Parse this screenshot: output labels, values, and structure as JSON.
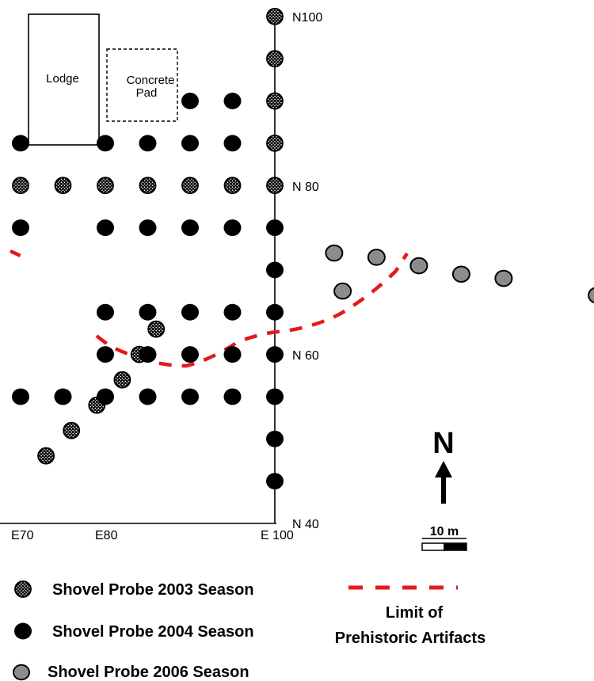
{
  "map": {
    "lodge_label": "Lodge",
    "pad_label_line1": "Concrete",
    "pad_label_line2": "Pad",
    "northing_labels": {
      "n100": "N100",
      "n80": "N 80",
      "n60": "N 60",
      "n40": "N 40"
    },
    "easting_labels": {
      "e70": "E70",
      "e80": "E80",
      "e100": "E 100"
    },
    "north_arrow_label": "N",
    "scale_label": "10 m"
  },
  "legend": {
    "probe_2003": "Shovel Probe 2003 Season",
    "probe_2004": "Shovel Probe 2004 Season",
    "probe_2006": "Shovel Probe 2006 Season",
    "limit_line1": "Limit of",
    "limit_line2": "Prehistoric Artifacts"
  },
  "colors": {
    "probe_2004": "#000000",
    "probe_2006": "#8c8c8c",
    "limit_line": "#e11a1a"
  },
  "probes": {
    "season_2003": [
      [
        100,
        100
      ],
      [
        100,
        95
      ],
      [
        100,
        90
      ],
      [
        100,
        85
      ],
      [
        100,
        80
      ],
      [
        70,
        80
      ],
      [
        75,
        80
      ],
      [
        80,
        80
      ],
      [
        85,
        80
      ],
      [
        90,
        80
      ],
      [
        95,
        80
      ],
      [
        86,
        63
      ],
      [
        84,
        60
      ],
      [
        82,
        57
      ],
      [
        79,
        54
      ],
      [
        76,
        51
      ],
      [
        73,
        48
      ]
    ],
    "season_2004": [
      [
        90,
        90
      ],
      [
        95,
        90
      ],
      [
        70,
        85
      ],
      [
        80,
        85
      ],
      [
        85,
        85
      ],
      [
        90,
        85
      ],
      [
        95,
        85
      ],
      [
        70,
        75
      ],
      [
        80,
        75
      ],
      [
        85,
        75
      ],
      [
        90,
        75
      ],
      [
        95,
        75
      ],
      [
        100,
        75
      ],
      [
        100,
        70
      ],
      [
        80,
        65
      ],
      [
        85,
        65
      ],
      [
        90,
        65
      ],
      [
        95,
        65
      ],
      [
        100,
        65
      ],
      [
        80,
        60
      ],
      [
        85,
        60
      ],
      [
        90,
        60
      ],
      [
        95,
        60
      ],
      [
        100,
        60
      ],
      [
        70,
        55
      ],
      [
        75,
        55
      ],
      [
        80,
        55
      ],
      [
        85,
        55
      ],
      [
        90,
        55
      ],
      [
        95,
        55
      ],
      [
        100,
        55
      ],
      [
        100,
        50
      ],
      [
        100,
        45
      ]
    ],
    "season_2006": [
      [
        107,
        72
      ],
      [
        112,
        71.5
      ],
      [
        117,
        70.5
      ],
      [
        122,
        69.5
      ],
      [
        127,
        69
      ],
      [
        108,
        67.5
      ],
      [
        138,
        67
      ]
    ]
  }
}
